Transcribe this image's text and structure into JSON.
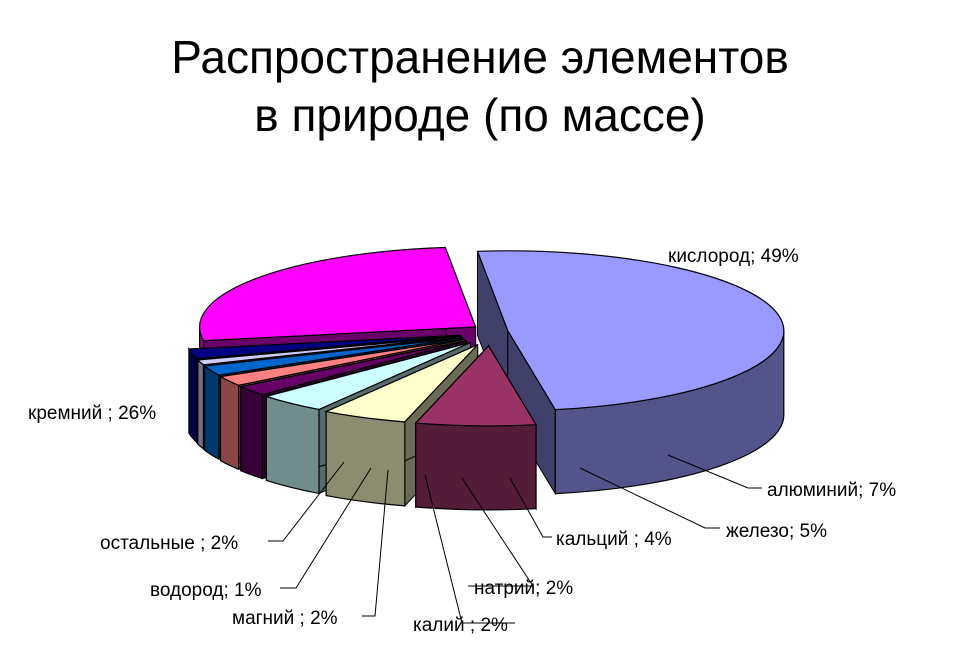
{
  "page": {
    "title_line1": "Распространение элементов",
    "title_line2": "в природе (по массе)"
  },
  "chart_data": {
    "type": "pie",
    "style": "3d-exploded",
    "categories": [
      "кислород",
      "алюминий",
      "железо",
      "кальций",
      "натрий",
      "калий",
      "магний",
      "водород",
      "остальные",
      "кремний"
    ],
    "values": [
      49,
      7,
      5,
      4,
      2,
      2,
      2,
      1,
      2,
      26
    ],
    "labels": [
      "кислород; 49%",
      "алюминий; 7%",
      "железо; 5%",
      "кальций ; 4%",
      "натрий; 2%",
      "калий ; 2%",
      "магний ; 2%",
      "водород; 1%",
      "остальные ; 2%",
      "кремний ; 26%"
    ],
    "colors": [
      "#9999ff",
      "#993366",
      "#ffffcc",
      "#ccffff",
      "#660066",
      "#ff8080",
      "#0066cc",
      "#ccccff",
      "#000080",
      "#ff00ff"
    ],
    "legend": "none"
  }
}
